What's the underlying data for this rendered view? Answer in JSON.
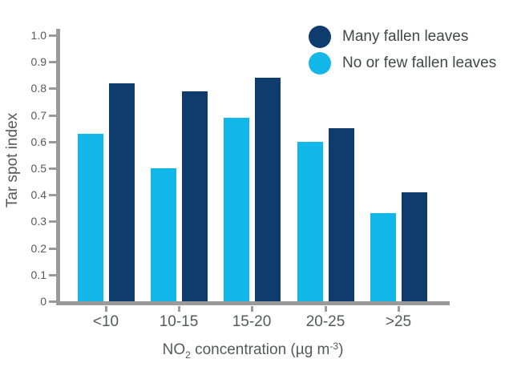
{
  "chart_data": {
    "type": "bar",
    "title": "",
    "categories": [
      "<10",
      "10-15",
      "15-20",
      "20-25",
      ">25"
    ],
    "series": [
      {
        "name": "No or few fallen leaves",
        "color": "#12b7ea",
        "values": [
          0.63,
          0.5,
          0.69,
          0.6,
          0.33
        ]
      },
      {
        "name": "Many fallen leaves",
        "color": "#0e3c6c",
        "values": [
          0.82,
          0.79,
          0.84,
          0.65,
          0.41
        ]
      }
    ],
    "legend_order": [
      1,
      0
    ],
    "legend_position": "top-right",
    "legend_marker": "circle",
    "xlabel": {
      "prefix": "NO",
      "subscript": "2",
      "middle": " concentration (µg m",
      "superscript": "-3",
      "suffix": ")"
    },
    "ylabel": "Tar spot index",
    "ylim": [
      0,
      1.0
    ],
    "yticks": [
      "0",
      "0.1",
      "0.2",
      "0.3",
      "0.4",
      "0.5",
      "0.6",
      "0.7",
      "0.8",
      "0.9",
      "1.0"
    ],
    "grid": false
  },
  "colors": {
    "axis": "#9a9a9a",
    "tick_text": "#56595c",
    "legend_text": "#43474a",
    "background": "#ffffff"
  }
}
